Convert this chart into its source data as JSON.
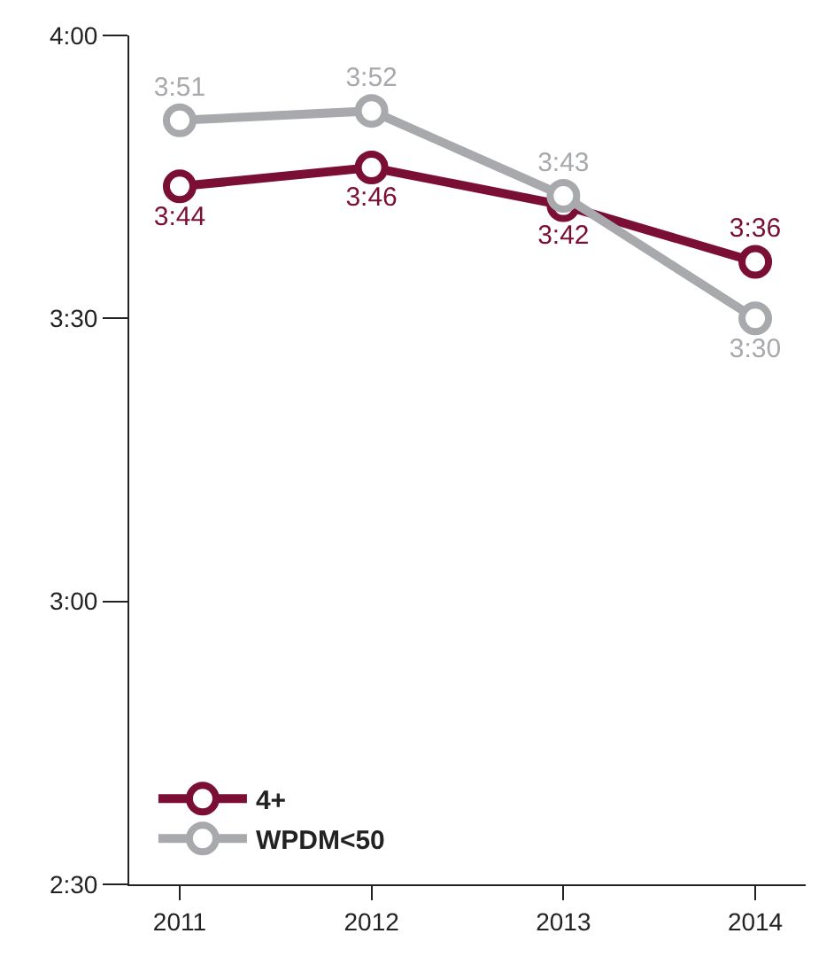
{
  "chart_data": {
    "type": "line",
    "categories": [
      "2011",
      "2012",
      "2013",
      "2014"
    ],
    "series": [
      {
        "name": "4+",
        "color": "#7b0e35",
        "values": [
          224,
          226,
          222,
          216
        ],
        "value_labels": [
          "3:44",
          "3:46",
          "3:42",
          "3:36"
        ]
      },
      {
        "name": "WPDM<50",
        "color": "#a7a9ac",
        "values": [
          231,
          232,
          223,
          210
        ],
        "value_labels": [
          "3:51",
          "3:52",
          "3:43",
          "3:30"
        ]
      }
    ],
    "ylim": [
      150,
      240
    ],
    "yticks": [
      {
        "value": 150,
        "label": "2:30"
      },
      {
        "value": 180,
        "label": "3:00"
      },
      {
        "value": 210,
        "label": "3:30"
      },
      {
        "value": 240,
        "label": "4:00"
      }
    ],
    "legend": "bottom left",
    "marker": "circle",
    "line_style": "solid"
  }
}
